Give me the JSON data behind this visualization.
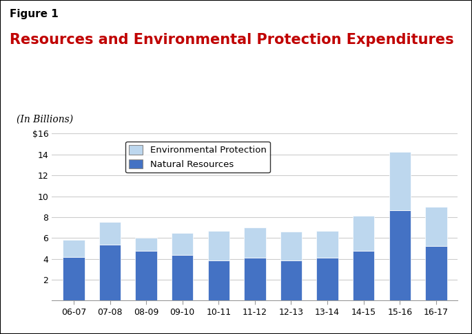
{
  "title_line1": "Figure 1",
  "title_line2": "Resources and Environmental Protection Expenditures",
  "subtitle": "(In Billions)",
  "categories": [
    "06-07",
    "07-08",
    "08-09",
    "09-10",
    "10-11",
    "11-12",
    "12-13",
    "13-14",
    "14-15",
    "15-16",
    "16-17"
  ],
  "natural_resources": [
    4.2,
    5.35,
    4.8,
    4.35,
    3.85,
    4.1,
    3.85,
    4.1,
    4.75,
    8.65,
    5.2
  ],
  "environmental_protection": [
    1.65,
    2.15,
    1.25,
    2.15,
    2.85,
    2.9,
    2.75,
    2.6,
    3.35,
    5.6,
    3.8
  ],
  "natural_resources_color": "#4472C4",
  "environmental_protection_color": "#BDD7EE",
  "ylim": [
    0,
    16
  ],
  "yticks": [
    0,
    2,
    4,
    6,
    8,
    10,
    12,
    14,
    16
  ],
  "ytick_labels": [
    "",
    "2",
    "4",
    "6",
    "8",
    "10",
    "12",
    "14",
    "$16"
  ],
  "legend_env_label": "Environmental Protection",
  "legend_nat_label": "Natural Resources",
  "background_color": "#FFFFFF",
  "border_color": "#000000",
  "title_color": "#C00000",
  "title1_color": "#000000",
  "grid_color": "#CCCCCC",
  "bar_width": 0.6
}
